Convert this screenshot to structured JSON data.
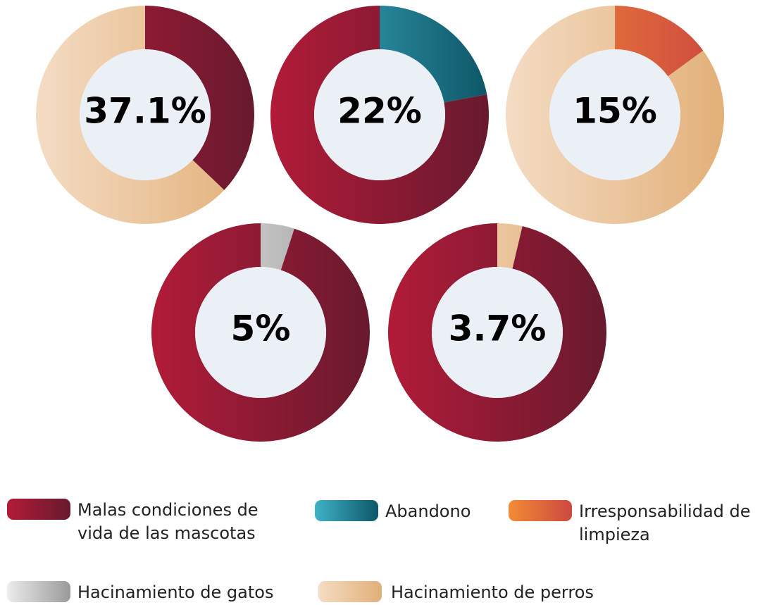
{
  "legend": [
    {
      "name": "Malas condiciones de vida de las mascotas",
      "color": [
        "#b21b38",
        "#681a2f"
      ]
    },
    {
      "name": "Abandono",
      "color": [
        "#40b2c6",
        "#0d5767"
      ]
    },
    {
      "name": "Irresponsabilidad de limpieza",
      "color": [
        "#f28c36",
        "#cc4840"
      ]
    },
    {
      "name": "Hacinamiento de gatos",
      "color": [
        "#ececec",
        "#9a9a9a"
      ]
    },
    {
      "name": "Hacinamiento de perros",
      "color": [
        "#f4dcc4",
        "#e2b078"
      ]
    }
  ],
  "chart_data": [
    {
      "type": "pie",
      "values": [
        37.1,
        62.9
      ],
      "value_labels": [
        "37.1%",
        null
      ],
      "colors": [
        [
          "#b21b38",
          "#681a2f"
        ],
        [
          "#f4dcc4",
          "#e2b078"
        ]
      ]
    },
    {
      "type": "pie",
      "values": [
        22,
        78
      ],
      "value_labels": [
        "22%",
        null
      ],
      "colors": [
        [
          "#40b2c6",
          "#0d5767"
        ],
        [
          "#b21b38",
          "#681a2f"
        ]
      ]
    },
    {
      "type": "pie",
      "values": [
        15,
        85
      ],
      "value_labels": [
        "15%",
        null
      ],
      "colors": [
        [
          "#f28c36",
          "#cc4840"
        ],
        [
          "#f4dcc4",
          "#e2b078"
        ]
      ]
    },
    {
      "type": "pie",
      "values": [
        5,
        95
      ],
      "value_labels": [
        "5%",
        null
      ],
      "colors": [
        [
          "#ececec",
          "#9a9a9a"
        ],
        [
          "#b21b38",
          "#681a2f"
        ]
      ]
    },
    {
      "type": "pie",
      "values": [
        3.7,
        96.3
      ],
      "value_labels": [
        "3.7%",
        null
      ],
      "colors": [
        [
          "#f4dcc4",
          "#e2b078"
        ],
        [
          "#b21b38",
          "#681a2f"
        ]
      ]
    }
  ]
}
